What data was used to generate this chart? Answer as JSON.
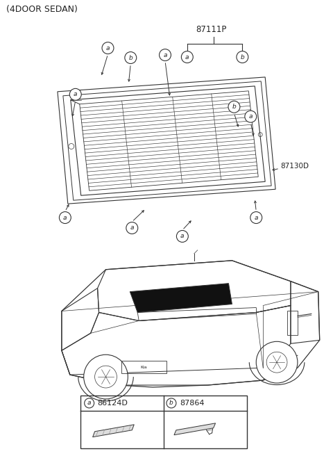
{
  "title": "(4DOOR SEDAN)",
  "bg_color": "#ffffff",
  "part_number_main": "87111P",
  "part_number_2": "87130D",
  "label_a_part": "86124D",
  "label_b_part": "87864",
  "fig_width": 4.8,
  "fig_height": 6.56,
  "dpi": 100
}
